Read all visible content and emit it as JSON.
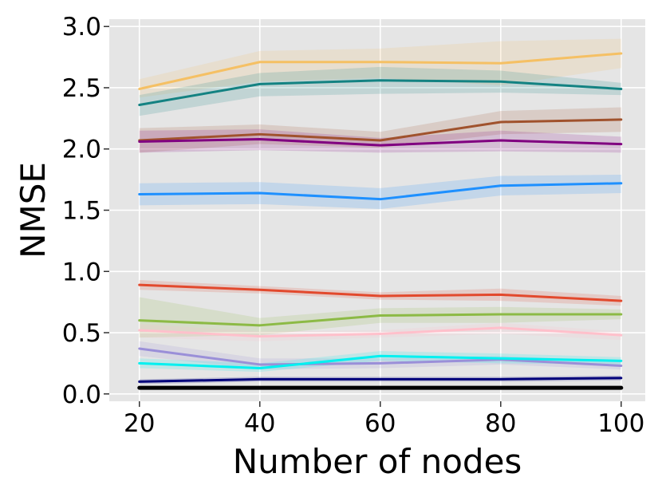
{
  "chart_data": {
    "type": "line",
    "xlabel": "Number of nodes",
    "ylabel": "NMSE",
    "x": [
      20,
      40,
      60,
      80,
      100
    ],
    "xticks": [
      "20",
      "40",
      "60",
      "80",
      "100"
    ],
    "yticks": [
      "0.0",
      "0.5",
      "1.0",
      "1.5",
      "2.0",
      "2.5",
      "3.0"
    ],
    "xlim": [
      15,
      104
    ],
    "ylim": [
      -0.06,
      3.06
    ],
    "grid": true,
    "background": "#e5e5e5",
    "grid_color": "#ffffff",
    "series": [
      {
        "color": "#f5c064",
        "values": [
          2.49,
          2.71,
          2.71,
          2.7,
          2.78
        ],
        "lower": [
          2.42,
          2.55,
          2.58,
          2.52,
          2.66
        ],
        "upper": [
          2.57,
          2.8,
          2.82,
          2.88,
          2.9
        ]
      },
      {
        "color": "#138282",
        "values": [
          2.36,
          2.53,
          2.56,
          2.55,
          2.49
        ],
        "lower": [
          2.27,
          2.43,
          2.45,
          2.46,
          2.44
        ],
        "upper": [
          2.44,
          2.62,
          2.67,
          2.64,
          2.54
        ]
      },
      {
        "color": "#a0522d",
        "values": [
          2.07,
          2.12,
          2.07,
          2.22,
          2.24
        ],
        "lower": [
          1.97,
          2.04,
          2.01,
          2.12,
          2.14
        ],
        "upper": [
          2.17,
          2.2,
          2.14,
          2.31,
          2.34
        ]
      },
      {
        "color": "#800080",
        "values": [
          2.06,
          2.08,
          2.03,
          2.07,
          2.04
        ],
        "lower": [
          1.97,
          1.99,
          1.97,
          1.98,
          1.97
        ],
        "upper": [
          2.15,
          2.16,
          2.09,
          2.15,
          2.1
        ]
      },
      {
        "color": "#1e90ff",
        "values": [
          1.63,
          1.64,
          1.59,
          1.7,
          1.72
        ],
        "lower": [
          1.54,
          1.55,
          1.51,
          1.62,
          1.64
        ],
        "upper": [
          1.72,
          1.73,
          1.68,
          1.78,
          1.79
        ]
      },
      {
        "color": "#e2492d",
        "values": [
          0.89,
          0.85,
          0.8,
          0.81,
          0.76
        ],
        "lower": [
          0.85,
          0.82,
          0.77,
          0.76,
          0.72
        ],
        "upper": [
          0.93,
          0.88,
          0.83,
          0.86,
          0.8
        ]
      },
      {
        "color": "#8cba45",
        "values": [
          0.6,
          0.56,
          0.64,
          0.65,
          0.65
        ],
        "lower": [
          0.46,
          0.48,
          0.58,
          0.58,
          0.61
        ],
        "upper": [
          0.79,
          0.62,
          0.7,
          0.71,
          0.69
        ]
      },
      {
        "color": "#ffc0cb",
        "values": [
          0.52,
          0.47,
          0.49,
          0.54,
          0.48
        ],
        "lower": [
          0.46,
          0.43,
          0.46,
          0.49,
          0.44
        ],
        "upper": [
          0.57,
          0.51,
          0.52,
          0.58,
          0.51
        ]
      },
      {
        "color": "#9a8fd8",
        "values": [
          0.37,
          0.24,
          0.25,
          0.28,
          0.23
        ],
        "lower": [
          0.31,
          0.2,
          0.21,
          0.24,
          0.2
        ],
        "upper": [
          0.43,
          0.29,
          0.29,
          0.31,
          0.27
        ]
      },
      {
        "color": "#00f0f0",
        "values": [
          0.25,
          0.21,
          0.31,
          0.29,
          0.27
        ],
        "lower": [
          0.21,
          0.18,
          0.27,
          0.25,
          0.24
        ],
        "upper": [
          0.29,
          0.25,
          0.35,
          0.33,
          0.3
        ]
      },
      {
        "color": "#00007a",
        "values": [
          0.1,
          0.12,
          0.12,
          0.12,
          0.13
        ],
        "lower": [
          0.08,
          0.1,
          0.1,
          0.1,
          0.11
        ],
        "upper": [
          0.12,
          0.14,
          0.14,
          0.14,
          0.15
        ]
      },
      {
        "color": "#000000",
        "values": [
          0.05,
          0.05,
          0.05,
          0.05,
          0.05
        ],
        "lower": [
          0.04,
          0.04,
          0.04,
          0.04,
          0.04
        ],
        "upper": [
          0.06,
          0.06,
          0.06,
          0.06,
          0.06
        ]
      }
    ]
  }
}
